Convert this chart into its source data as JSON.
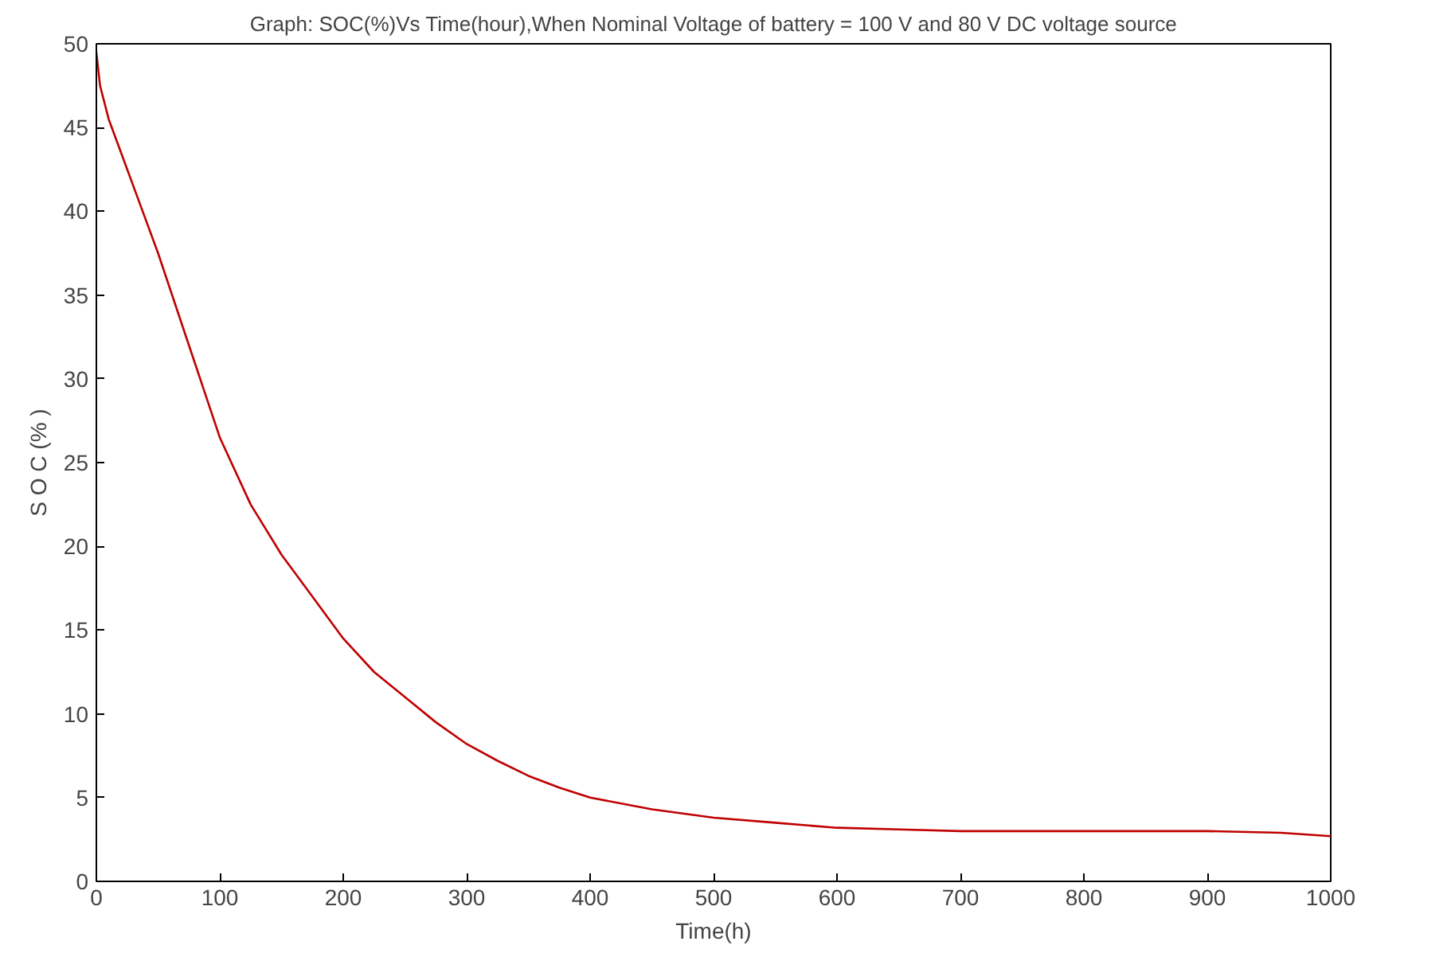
{
  "chart_data": {
    "type": "line",
    "title": "Graph: SOC(%)Vs Time(hour),When Nominal Voltage of battery = 100 V and 80 V DC voltage source",
    "xlabel": "Time(h)",
    "ylabel": "S O C (% )",
    "x": [
      0,
      3,
      10,
      20,
      35,
      50,
      75,
      100,
      125,
      150,
      175,
      200,
      225,
      250,
      275,
      300,
      325,
      350,
      375,
      400,
      450,
      500,
      550,
      600,
      650,
      700,
      800,
      900,
      960,
      1000
    ],
    "series": [
      {
        "color": "#c00000",
        "values": [
          49.5,
          47.5,
          45.5,
          43.5,
          40.5,
          37.5,
          32,
          26.5,
          22.5,
          19.5,
          17,
          14.5,
          12.5,
          11,
          9.5,
          8.2,
          7.2,
          6.3,
          5.6,
          5,
          4.3,
          3.8,
          3.5,
          3.2,
          3.1,
          3.0,
          3.0,
          3.0,
          2.9,
          2.7
        ]
      }
    ],
    "xlim": [
      0,
      1000
    ],
    "ylim": [
      0,
      50
    ],
    "xticks": [
      0,
      100,
      200,
      300,
      400,
      500,
      600,
      700,
      800,
      900,
      1000
    ],
    "yticks": [
      0,
      5,
      10,
      15,
      20,
      25,
      30,
      35,
      40,
      45,
      50
    ],
    "grid": false,
    "marker": "none",
    "line_style": "solid"
  }
}
